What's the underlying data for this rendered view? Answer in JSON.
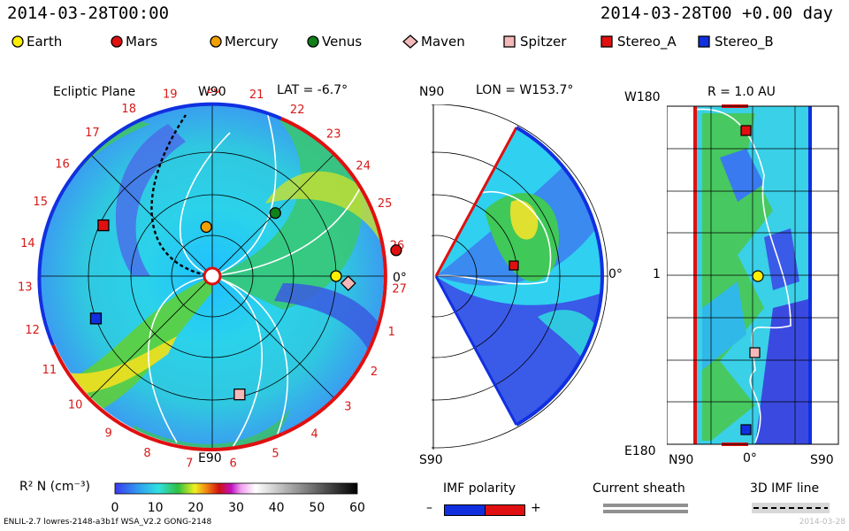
{
  "header": {
    "time_left": "2014-03-28T00:00",
    "time_right": "2014-03-28T00 +0.00 day"
  },
  "legend": [
    {
      "name": "Earth",
      "shape": "circle",
      "color": "#ffee00"
    },
    {
      "name": "Mars",
      "shape": "circle",
      "color": "#e01010"
    },
    {
      "name": "Mercury",
      "shape": "circle",
      "color": "#f0a000"
    },
    {
      "name": "Venus",
      "shape": "circle",
      "color": "#10801a"
    },
    {
      "name": "Maven",
      "shape": "diamond",
      "color": "#f4b8b8"
    },
    {
      "name": "Spitzer",
      "shape": "square",
      "color": "#f4b8b8"
    },
    {
      "name": "Stereo_A",
      "shape": "square",
      "color": "#e01010"
    },
    {
      "name": "Stereo_B",
      "shape": "square",
      "color": "#1030e0"
    }
  ],
  "panels": {
    "ecliptic": {
      "title": "Ecliptic Plane",
      "lat": "LAT = -6.7°",
      "top": "W90",
      "bottom": "E90",
      "right": "0°",
      "carrington_labels": [
        "19",
        "20",
        "21",
        "22",
        "23",
        "24",
        "25",
        "26",
        "27",
        "1",
        "2",
        "3",
        "4",
        "5",
        "6",
        "7",
        "8",
        "9",
        "10",
        "11",
        "12",
        "13",
        "14",
        "15",
        "16",
        "17",
        "18"
      ]
    },
    "meridional": {
      "top": "N90",
      "bottom": "S90",
      "lon": "LON = W153.7°",
      "right": "0°"
    },
    "radial": {
      "title": "R = 1.0 AU",
      "top_left": "W180",
      "mid_left": "1",
      "bottom_left": "E180",
      "x_left": "N90",
      "x_mid": "0°",
      "x_right": "S90"
    }
  },
  "colorbar": {
    "label": "R² N (cm⁻³)",
    "ticks": [
      "0",
      "10",
      "20",
      "30",
      "40",
      "50",
      "60"
    ]
  },
  "keys": {
    "imf_polarity": "IMF polarity",
    "minus": "–",
    "plus": "+",
    "current_sheath": "Current sheath",
    "imf_line": "3D IMF line"
  },
  "footer": {
    "left": "ENLIL-2.7 lowres-2148-a3b1f WSA_V2.2 GONG-2148",
    "right": "2014-03-28"
  },
  "chart_data": {
    "type": "heatmap",
    "quantity": "R² N (cm⁻³)",
    "colorbar_range": [
      0,
      60
    ],
    "bodies_ecliptic": [
      {
        "name": "Earth",
        "angle_deg": 0,
        "r_au": 1.0
      },
      {
        "name": "Mars",
        "angle_deg": 8,
        "r_au": 1.5
      },
      {
        "name": "Mercury",
        "angle_deg": 97,
        "r_au": 0.4
      },
      {
        "name": "Venus",
        "angle_deg": 45,
        "r_au": 0.72
      },
      {
        "name": "Maven",
        "angle_deg": -3,
        "r_au": 1.1
      },
      {
        "name": "Spitzer",
        "angle_deg": -77,
        "r_au": 0.98
      },
      {
        "name": "Stereo_A",
        "angle_deg": 155,
        "r_au": 0.97
      },
      {
        "name": "Stereo_B",
        "angle_deg": -160,
        "r_au": 1.0
      }
    ]
  }
}
